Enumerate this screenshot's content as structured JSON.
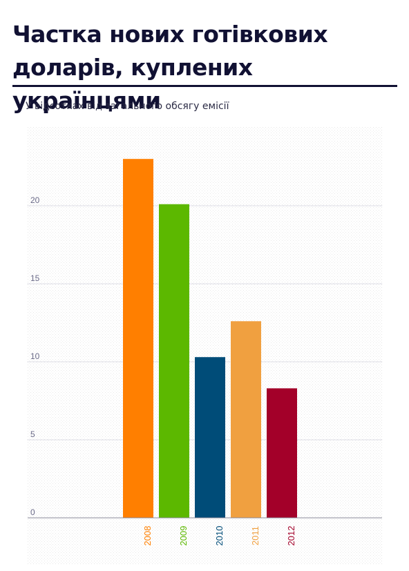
{
  "title": "Частка нових готівкових доларів, куплених українцями",
  "subtitle": "У відсотках від загального обсягу емісії",
  "chart_data": {
    "type": "bar",
    "title": "Частка нових готівкових доларів, куплених українцями",
    "subtitle": "У відсотках від загального обсягу емісії",
    "categories": [
      "2008",
      "2009",
      "2010",
      "2011",
      "2012"
    ],
    "values": [
      23.0,
      20.1,
      10.3,
      12.6,
      8.3
    ],
    "colors": [
      "#ff7f00",
      "#5cb800",
      "#004c78",
      "#f0a040",
      "#a30029"
    ],
    "ylim": [
      0,
      25
    ],
    "yticks": [
      0,
      5,
      10,
      15,
      20
    ],
    "xlabel": "",
    "ylabel": "",
    "grid": true,
    "legend": "none"
  }
}
